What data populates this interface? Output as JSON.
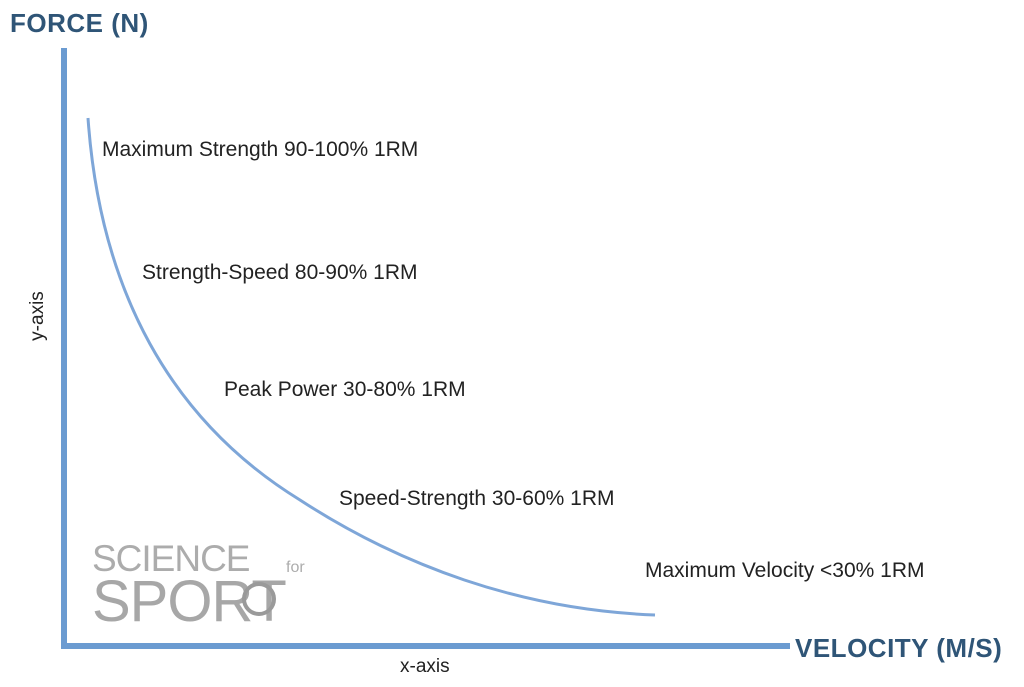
{
  "axes": {
    "y_title": "FORCE (N)",
    "x_title": "VELOCITY (M/S)",
    "y_caption": "y-axis",
    "x_caption": "x-axis"
  },
  "zones": [
    {
      "label": "Maximum Strength 90-100% 1RM"
    },
    {
      "label": "Strength-Speed 80-90% 1RM"
    },
    {
      "label": "Peak Power 30-80% 1RM"
    },
    {
      "label": "Speed-Strength 30-60% 1RM"
    },
    {
      "label": "Maximum Velocity <30% 1RM"
    }
  ],
  "logo": {
    "line1": "SCIENCE",
    "line1_small": "for",
    "line2": "SPORT"
  },
  "colors": {
    "axis": "#6b9bd1",
    "curve": "#7ea6d8",
    "title": "#2f5577"
  }
}
